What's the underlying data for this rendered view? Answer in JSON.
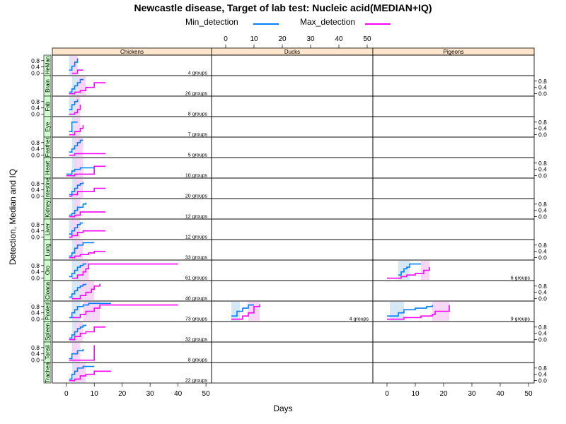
{
  "chart_data": {
    "type": "line",
    "title": "Newcastle disease, Target of lab test: Nucleic acid(MEDIAN+IQ)",
    "xlabel": "Days",
    "ylabel": "Detection, Median and IQ",
    "xlim": [
      -5,
      52
    ],
    "ylim": [
      -0.15,
      1.15
    ],
    "x_ticks": [
      0,
      10,
      20,
      30,
      40,
      50
    ],
    "y_ticks": [
      "0.0",
      "0.4",
      "0.8"
    ],
    "grid": false,
    "legend_position": "top",
    "colors": {
      "min": "#0080ff",
      "max": "#ff00ff",
      "min_band": "#cfe3f5",
      "max_band": "#f6d0f6",
      "strip": "#ffe5cc",
      "tissue_strip": "#ccffcc"
    },
    "columns": [
      "Chickens",
      "Ducks",
      "Pigeons"
    ],
    "rows": [
      "HeMan",
      "Brain",
      "Fab",
      "Eye",
      "Feather",
      "Heart",
      "Intestine",
      "Kidney",
      "Liver",
      "Lung",
      "Oro",
      "Cloaca",
      "Pooled",
      "Spleen",
      "Tonsil",
      "Trachea"
    ],
    "series": [
      {
        "name": "Min_detection",
        "color": "#0080ff"
      },
      {
        "name": "Max_detection",
        "color": "#ff00ff"
      }
    ],
    "panels": [
      {
        "row": 0,
        "col": 0,
        "label": "4 groups",
        "min": {
          "x": [
            1,
            2,
            3,
            4
          ],
          "y": [
            0.2,
            0.45,
            0.7,
            0.95
          ]
        },
        "max": {
          "x": [
            2,
            4,
            6
          ],
          "y": [
            0,
            0.2,
            0.2
          ]
        },
        "band_min": [
          1,
          2
        ],
        "band_max": [
          2,
          4
        ]
      },
      {
        "row": 1,
        "col": 0,
        "label": "26 groups",
        "min": {
          "x": [
            1,
            2,
            3,
            4,
            5,
            6
          ],
          "y": [
            0.1,
            0.3,
            0.5,
            0.7,
            0.9,
            0.95
          ]
        },
        "max": {
          "x": [
            1,
            3,
            5,
            7,
            10,
            10,
            14
          ],
          "y": [
            0,
            0.1,
            0.2,
            0.4,
            0.4,
            0.7,
            0.7
          ]
        },
        "band_min": [
          2,
          4
        ],
        "band_max": [
          4,
          7
        ]
      },
      {
        "row": 2,
        "col": 0,
        "label": "8 groups",
        "min": {
          "x": [
            1,
            2,
            3,
            4
          ],
          "y": [
            0.3,
            0.6,
            0.8,
            0.95
          ]
        },
        "max": {
          "x": [
            1,
            3,
            4,
            5,
            5
          ],
          "y": [
            0,
            0.1,
            0.3,
            0.3,
            0.6
          ]
        },
        "band_min": [
          1,
          3
        ],
        "band_max": [
          3,
          5
        ]
      },
      {
        "row": 3,
        "col": 0,
        "label": "7 groups",
        "min": {
          "x": [
            1,
            2,
            3,
            4
          ],
          "y": [
            0.2,
            0.8,
            0.8,
            0.8
          ]
        },
        "max": {
          "x": [
            1,
            3,
            5,
            6
          ],
          "y": [
            0,
            0.2,
            0.4,
            0.6
          ]
        },
        "band_min": [
          2,
          3
        ],
        "band_max": [
          3,
          5
        ]
      },
      {
        "row": 4,
        "col": 0,
        "label": "5 groups",
        "min": {
          "x": [
            1,
            2,
            3,
            4,
            5,
            6
          ],
          "y": [
            0.2,
            0.4,
            0.6,
            0.8,
            0.95,
            0.95
          ]
        },
        "max": {
          "x": [
            1,
            3,
            5,
            7,
            14
          ],
          "y": [
            0,
            0.1,
            0.1,
            0.1,
            0.1
          ]
        },
        "band_min": [
          2,
          5
        ],
        "band_max": [
          3,
          6
        ]
      },
      {
        "row": 5,
        "col": 0,
        "label": "10 groups",
        "min": {
          "x": [
            0,
            2,
            3,
            5,
            8,
            10
          ],
          "y": [
            0.1,
            0.3,
            0.4,
            0.5,
            0.5,
            0.5
          ]
        },
        "max": {
          "x": [
            0,
            3,
            5,
            10,
            10,
            14
          ],
          "y": [
            0,
            0.1,
            0.1,
            0.1,
            0.6,
            0.6
          ]
        },
        "band_min": [
          2,
          4
        ],
        "band_max": [
          3,
          6
        ]
      },
      {
        "row": 6,
        "col": 0,
        "label": "20 groups",
        "min": {
          "x": [
            1,
            2,
            3,
            4,
            5,
            6
          ],
          "y": [
            0.1,
            0.3,
            0.5,
            0.7,
            0.8,
            0.9
          ]
        },
        "max": {
          "x": [
            1,
            2,
            4,
            10,
            14
          ],
          "y": [
            0,
            0.1,
            0.3,
            0.5,
            0.5
          ]
        },
        "band_min": [
          2,
          4
        ],
        "band_max": [
          3,
          6
        ]
      },
      {
        "row": 7,
        "col": 0,
        "label": "12 groups",
        "min": {
          "x": [
            1,
            2,
            3,
            4,
            6,
            7
          ],
          "y": [
            0.1,
            0.2,
            0.4,
            0.6,
            0.8,
            0.9
          ]
        },
        "max": {
          "x": [
            1,
            3,
            5,
            14
          ],
          "y": [
            0,
            0.1,
            0.3,
            0.3
          ]
        },
        "band_min": [
          2,
          4
        ],
        "band_max": [
          3,
          5
        ]
      },
      {
        "row": 8,
        "col": 0,
        "label": "12 groups",
        "min": {
          "x": [
            1,
            2,
            3,
            4,
            5,
            6
          ],
          "y": [
            0.2,
            0.4,
            0.6,
            0.8,
            0.9,
            0.9
          ]
        },
        "max": {
          "x": [
            1,
            2,
            4,
            6,
            14
          ],
          "y": [
            0,
            0.1,
            0.3,
            0.4,
            0.4
          ]
        },
        "band_min": [
          1,
          3
        ],
        "band_max": [
          2,
          5
        ]
      },
      {
        "row": 9,
        "col": 0,
        "label": "33 groups",
        "min": {
          "x": [
            1,
            2,
            3,
            4,
            6,
            10
          ],
          "y": [
            0.1,
            0.3,
            0.6,
            0.8,
            0.95,
            0.95
          ]
        },
        "max": {
          "x": [
            1,
            3,
            5,
            8,
            10,
            14
          ],
          "y": [
            0,
            0.1,
            0.2,
            0.3,
            0.4,
            0.4
          ]
        },
        "band_min": [
          2,
          4
        ],
        "band_max": [
          3,
          6
        ]
      },
      {
        "row": 10,
        "col": 0,
        "label": "61 groups",
        "min": {
          "x": [
            1,
            2,
            3,
            4,
            5,
            6,
            7
          ],
          "y": [
            0.1,
            0.3,
            0.5,
            0.7,
            0.8,
            0.9,
            0.95
          ]
        },
        "max": {
          "x": [
            2,
            4,
            6,
            7,
            8,
            40
          ],
          "y": [
            0,
            0.2,
            0.4,
            0.6,
            0.9,
            0.9
          ]
        },
        "band_min": [
          2,
          5
        ],
        "band_max": [
          5,
          8
        ]
      },
      {
        "row": 11,
        "col": 0,
        "label": "40 groups",
        "min": {
          "x": [
            1,
            2,
            3,
            4,
            5,
            6,
            7
          ],
          "y": [
            0.1,
            0.3,
            0.5,
            0.7,
            0.8,
            0.9,
            0.95
          ]
        },
        "max": {
          "x": [
            2,
            5,
            7,
            9,
            10,
            12
          ],
          "y": [
            0,
            0.2,
            0.4,
            0.6,
            0.8,
            0.95
          ]
        },
        "band_min": [
          2,
          5
        ],
        "band_max": [
          5,
          10
        ]
      },
      {
        "row": 12,
        "col": 0,
        "label": "73 groups",
        "min": {
          "x": [
            1,
            2,
            3,
            4,
            6,
            8,
            16
          ],
          "y": [
            0.1,
            0.4,
            0.6,
            0.8,
            0.9,
            1.0,
            1.0
          ]
        },
        "max": {
          "x": [
            2,
            5,
            7,
            10,
            12,
            40
          ],
          "y": [
            0.1,
            0.3,
            0.5,
            0.7,
            0.9,
            0.9
          ]
        },
        "band_min": [
          2,
          5
        ],
        "band_max": [
          6,
          12
        ]
      },
      {
        "row": 13,
        "col": 0,
        "label": "32 groups",
        "min": {
          "x": [
            1,
            2,
            3,
            4,
            5,
            6,
            7
          ],
          "y": [
            0.1,
            0.3,
            0.5,
            0.7,
            0.8,
            0.9,
            0.95
          ]
        },
        "max": {
          "x": [
            1,
            3,
            5,
            7,
            10,
            10,
            14
          ],
          "y": [
            0,
            0.2,
            0.4,
            0.5,
            0.6,
            0.8,
            0.8
          ]
        },
        "band_min": [
          2,
          4
        ],
        "band_max": [
          3,
          6
        ]
      },
      {
        "row": 14,
        "col": 0,
        "label": "8 groups",
        "min": {
          "x": [
            1,
            2,
            4,
            6
          ],
          "y": [
            0.1,
            0.4,
            0.6,
            0.7
          ]
        },
        "max": {
          "x": [
            1,
            5,
            10,
            10
          ],
          "y": [
            0,
            0,
            0,
            0.95
          ]
        },
        "band_min": [
          2,
          4
        ],
        "band_max": [
          2,
          5
        ]
      },
      {
        "row": 15,
        "col": 0,
        "label": "22 groups",
        "min": {
          "x": [
            1,
            2,
            3,
            4,
            6,
            10
          ],
          "y": [
            0.1,
            0.4,
            0.6,
            0.8,
            0.9,
            0.9
          ]
        },
        "max": {
          "x": [
            1,
            3,
            5,
            7,
            10,
            10,
            16
          ],
          "y": [
            0,
            0.1,
            0.3,
            0.4,
            0.5,
            0.6,
            0.6
          ]
        },
        "band_min": [
          2,
          5
        ],
        "band_max": [
          3,
          7
        ]
      },
      {
        "row": 12,
        "col": 1,
        "label": "4 groups",
        "min": {
          "x": [
            2,
            4,
            6,
            8,
            10
          ],
          "y": [
            0.2,
            0.5,
            0.7,
            0.9,
            0.9
          ]
        },
        "max": {
          "x": [
            2,
            6,
            8,
            10,
            12
          ],
          "y": [
            0,
            0.2,
            0.4,
            0.8,
            0.95
          ]
        },
        "band_min": [
          2,
          5
        ],
        "band_max": [
          8,
          12
        ]
      },
      {
        "row": 10,
        "col": 2,
        "label": "6 groups",
        "min": {
          "x": [
            4,
            5,
            6,
            7,
            8,
            12
          ],
          "y": [
            0.2,
            0.4,
            0.6,
            0.7,
            0.9,
            0.9
          ]
        },
        "max": {
          "x": [
            0,
            5,
            7,
            10,
            13,
            15,
            15
          ],
          "y": [
            0,
            0.1,
            0.2,
            0.3,
            0.5,
            0.5,
            0.7
          ]
        },
        "band_min": [
          4,
          8
        ],
        "band_max": [
          12,
          15
        ]
      },
      {
        "row": 12,
        "col": 2,
        "label": "9 groups",
        "min": {
          "x": [
            0,
            4,
            6,
            10,
            14,
            16
          ],
          "y": [
            0.2,
            0.4,
            0.6,
            0.7,
            0.8,
            0.9
          ]
        },
        "max": {
          "x": [
            0,
            6,
            12,
            16,
            17,
            22,
            22
          ],
          "y": [
            0,
            0.1,
            0.2,
            0.3,
            0.5,
            0.9,
            0.9
          ]
        },
        "band_min": [
          1,
          6
        ],
        "band_max": [
          16,
          22
        ]
      }
    ]
  }
}
